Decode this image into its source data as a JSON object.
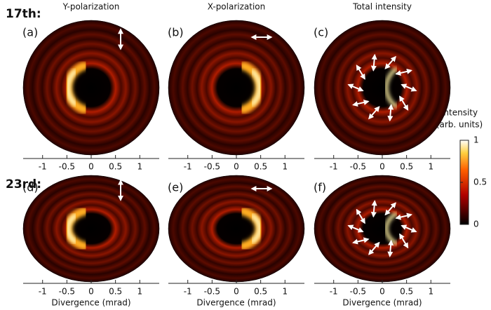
{
  "row_labels": [
    "17th:",
    "23rd:"
  ],
  "column_titles": [
    "Y-polarization",
    "X-polarization",
    "Total intensity"
  ],
  "panel_labels": [
    "(a)",
    "(b)",
    "(c)",
    "(d)",
    "(e)",
    "(f)"
  ],
  "x_axis": {
    "label": "Divergence (mrad)",
    "ticks": [
      -1,
      -0.5,
      0,
      0.5,
      1
    ],
    "lim": [
      -1.4,
      1.4
    ]
  },
  "colorbar": {
    "title": "Intensity",
    "subtitle": "(arb. units)",
    "ticks": [
      0,
      0.5,
      1
    ],
    "lim": [
      0,
      1
    ]
  }
}
